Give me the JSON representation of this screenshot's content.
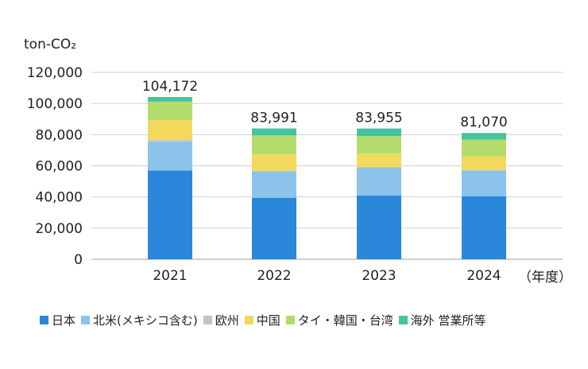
{
  "chart_data": {
    "type": "bar",
    "stacked": true,
    "ylabel": "ton-CO₂",
    "xunit": "（年度）",
    "ylim": [
      0,
      120000
    ],
    "yticks": [
      0,
      20000,
      40000,
      60000,
      80000,
      100000,
      120000
    ],
    "ytick_labels": [
      "0",
      "20,000",
      "40,000",
      "60,000",
      "80,000",
      "100,000",
      "120,000"
    ],
    "grid": true,
    "legend_position": "bottom",
    "categories": [
      "2021",
      "2022",
      "2023",
      "2024"
    ],
    "totals": [
      104172,
      83991,
      83955,
      81070
    ],
    "total_labels": [
      "104,172",
      "83,991",
      "83,955",
      "81,070"
    ],
    "series": [
      {
        "name": "日本",
        "color": "#2b87d9",
        "values": [
          57000,
          39500,
          41000,
          40500
        ]
      },
      {
        "name": "北米(メキシコ含む)",
        "color": "#8cc3ea",
        "values": [
          18500,
          17000,
          18000,
          16500
        ]
      },
      {
        "name": "欧州",
        "color": "#b5c8cf",
        "values": [
          1000,
          300,
          300,
          200
        ]
      },
      {
        "name": "中国",
        "color": "#f2d85c",
        "values": [
          12700,
          10500,
          8500,
          8800
        ]
      },
      {
        "name": "タイ・韓国・台湾",
        "color": "#b3dc6c",
        "values": [
          12000,
          12200,
          11200,
          10800
        ]
      },
      {
        "name": "海外 営業所等",
        "color": "#45c3a0",
        "values": [
          2972,
          4491,
          4955,
          4270
        ]
      }
    ]
  }
}
